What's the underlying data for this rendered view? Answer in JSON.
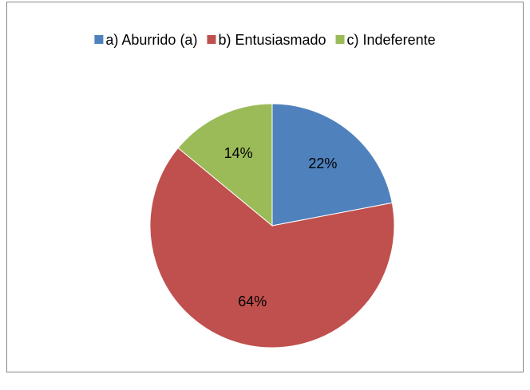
{
  "chart_data": {
    "type": "pie",
    "categories": [
      "a) Aburrido (a)",
      "b) Entusiasmado",
      "c) Indeferente"
    ],
    "values": [
      22,
      64,
      14
    ],
    "value_labels": [
      "22%",
      "64%",
      "14%"
    ],
    "colors": [
      "#4f81bd",
      "#c0504d",
      "#9bbb59"
    ],
    "legend": "top"
  }
}
